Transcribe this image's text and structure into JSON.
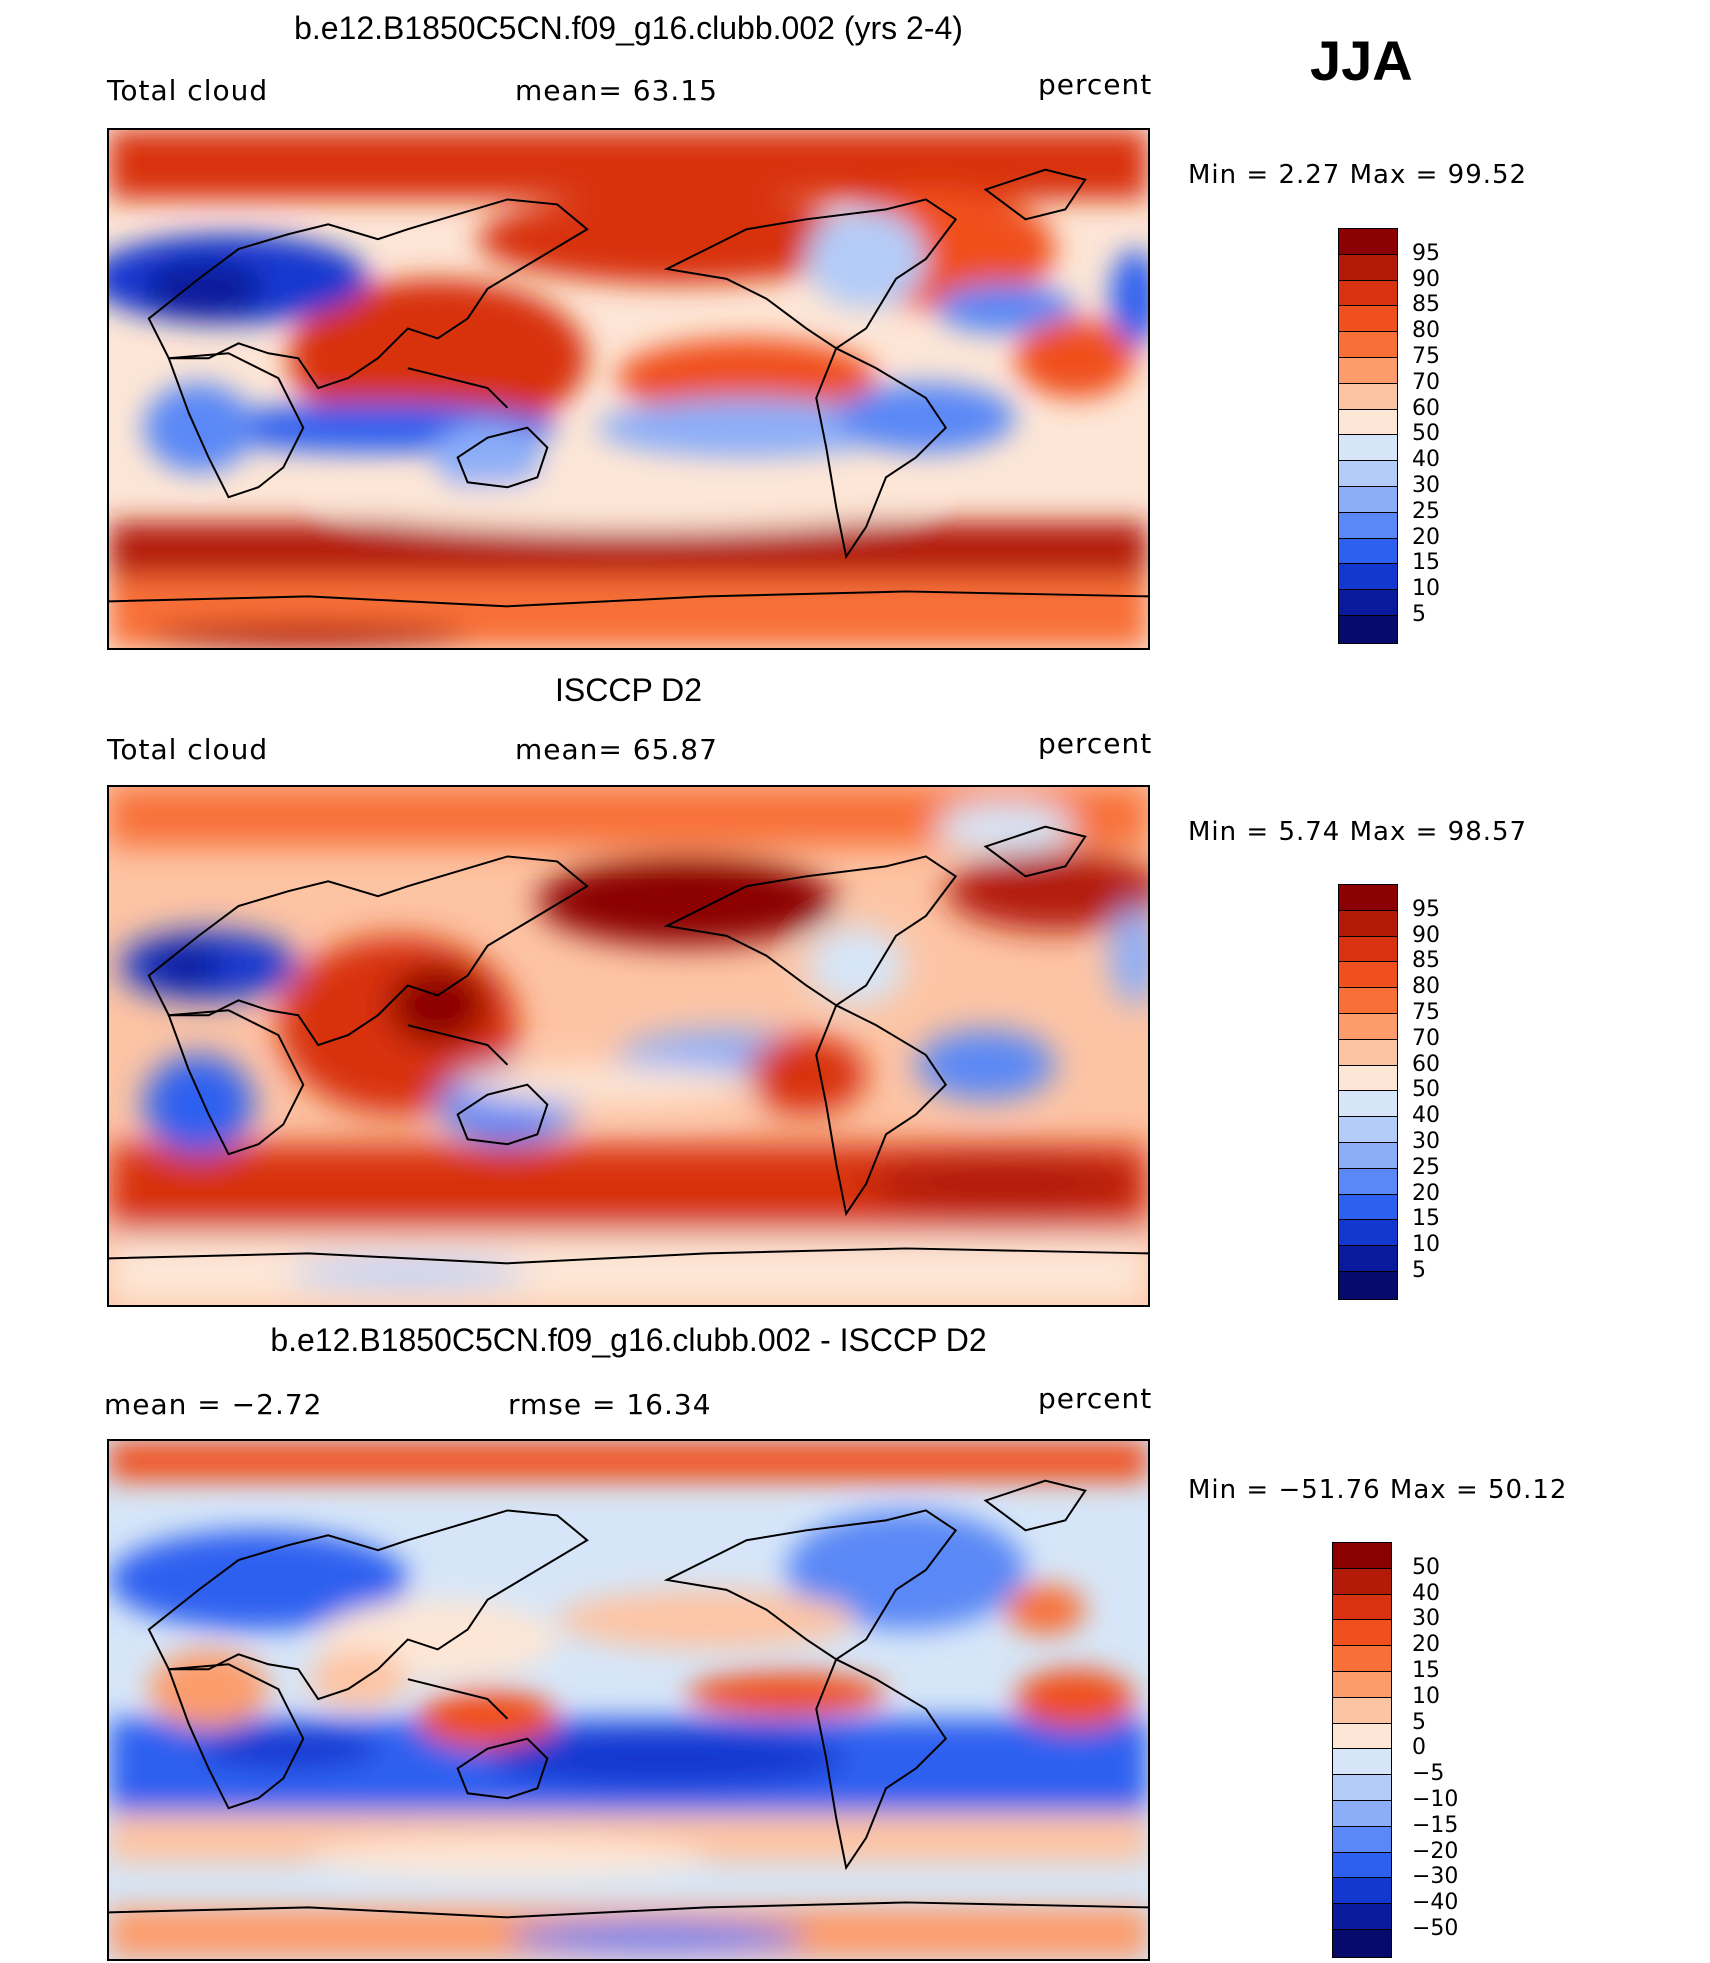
{
  "season": "JJA",
  "chart_data": [
    {
      "type": "heatmap",
      "title": "b.e12.B1850C5CN.f09_g16.clubb.002 (yrs 2-4)",
      "left_label": "Total cloud",
      "center_label": "mean=   63.15",
      "units": "percent",
      "min_max": "Min =    2.27 Max =   99.52",
      "stats": {
        "mean": 63.15,
        "min": 2.27,
        "max": 99.52
      },
      "colorbar_levels": [
        "95",
        "90",
        "85",
        "80",
        "75",
        "70",
        "60",
        "50",
        "40",
        "30",
        "25",
        "20",
        "15",
        "10",
        "5"
      ]
    },
    {
      "type": "heatmap",
      "title": "ISCCP D2",
      "left_label": "Total cloud",
      "center_label": "mean=   65.87",
      "units": "percent",
      "min_max": "Min =    5.74 Max =   98.57",
      "stats": {
        "mean": 65.87,
        "min": 5.74,
        "max": 98.57
      },
      "colorbar_levels": [
        "95",
        "90",
        "85",
        "80",
        "75",
        "70",
        "60",
        "50",
        "40",
        "30",
        "25",
        "20",
        "15",
        "10",
        "5"
      ]
    },
    {
      "type": "heatmap",
      "title": "b.e12.B1850C5CN.f09_g16.clubb.002 - ISCCP D2",
      "left_label": "mean =   −2.72",
      "center_label": "rmse =   16.34",
      "units": "percent",
      "min_max": "Min = −51.76 Max =   50.12",
      "stats": {
        "mean": -2.72,
        "rmse": 16.34,
        "min": -51.76,
        "max": 50.12
      },
      "colorbar_levels": [
        "50",
        "40",
        "30",
        "20",
        "15",
        "10",
        "5",
        "0",
        "−5",
        "−10",
        "−15",
        "−20",
        "−30",
        "−40",
        "−50"
      ]
    }
  ],
  "palette": [
    "#8b0000",
    "#b41a08",
    "#d83210",
    "#f0501e",
    "#f87038",
    "#fc9c6c",
    "#fdc4a4",
    "#fde6d6",
    "#d6e6f8",
    "#b4ccf8",
    "#8caef8",
    "#5a88f6",
    "#2e60f0",
    "#1238d0",
    "#0a1a9c",
    "#050a6c"
  ]
}
